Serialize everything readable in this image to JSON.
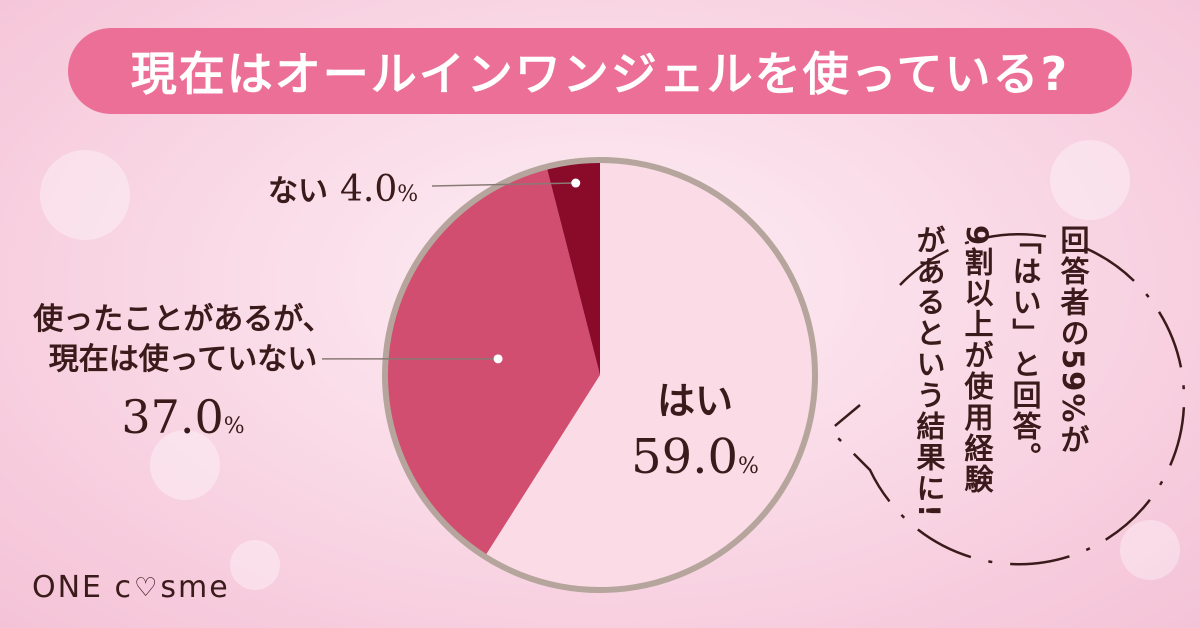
{
  "title": "現在はオールインワンジェルを使っている?",
  "chart_data": {
    "type": "pie",
    "slices": [
      {
        "label": "はい",
        "value": 59.0,
        "color": "#fbdce6"
      },
      {
        "label": "使ったことがあるが、現在は使っていない",
        "value": 37.0,
        "color": "#d14e70"
      },
      {
        "label": "ない",
        "value": 4.0,
        "color": "#8a0a2a"
      }
    ],
    "unit": "%",
    "border_color": "#b5a59d"
  },
  "labels": {
    "hai": {
      "text": "はい",
      "value": "59.0",
      "unit": "%"
    },
    "mae": {
      "line1": "使ったことがあるが、",
      "line2": "現在は使っていない",
      "value": "37.0",
      "unit": "%"
    },
    "nai": {
      "text": "ない",
      "value": "4.0",
      "unit": "%"
    }
  },
  "note": {
    "line1": "回答者の59%が",
    "line2": "「はい」と回答。",
    "line3": "9割以上が使用経験",
    "line4": "があるという結果に!"
  },
  "logo": {
    "part1": "ONE c",
    "part2": "sme"
  }
}
